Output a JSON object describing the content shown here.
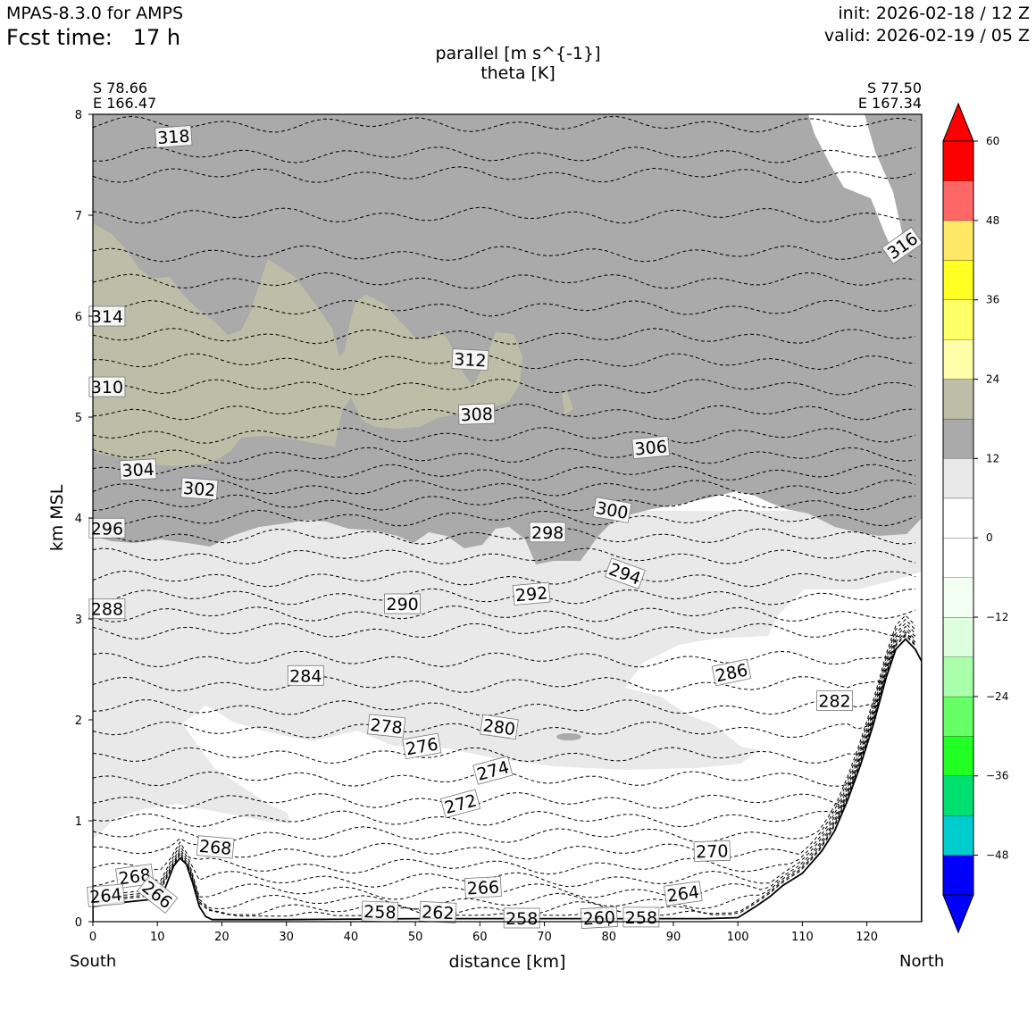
{
  "header": {
    "model": "MPAS-8.3.0 for AMPS",
    "fcst_label": "Fcst time:",
    "fcst_value": "17 h",
    "init": "init: 2026-02-18 / 12 Z",
    "valid": "valid: 2026-02-19 / 05 Z"
  },
  "section": {
    "left_lat": "S 78.66",
    "left_lon": "E 166.47",
    "right_lat": "S 77.50",
    "right_lon": "E 167.34",
    "south": "South",
    "north": "North"
  },
  "chart_data": {
    "type": "cross-section",
    "title_line1": "parallel [m s^{-1}]",
    "title_line2": "theta [K]",
    "xlabel": "distance [km]",
    "ylabel": "km MSL",
    "xlim": [
      0,
      128.5
    ],
    "ylim": [
      0,
      8
    ],
    "x_ticks": [
      "0",
      "10",
      "20",
      "30",
      "40",
      "50",
      "60",
      "70",
      "80",
      "90",
      "100",
      "110",
      "120"
    ],
    "y_ticks": [
      "0",
      "1",
      "2",
      "3",
      "4",
      "5",
      "6",
      "7",
      "8"
    ],
    "colorbar": {
      "levels": [
        -54,
        -48,
        -42,
        -36,
        -30,
        -24,
        -18,
        -12,
        -6,
        0,
        6,
        12,
        18,
        24,
        30,
        36,
        42,
        48,
        54,
        60
      ],
      "colors": [
        "#0000ff",
        "#00cdcd",
        "#00e070",
        "#22ff22",
        "#66ff66",
        "#aaffaa",
        "#ddffdd",
        "#f4fff4",
        "#ffffff",
        "#ffffff",
        "#e9e9e9",
        "#aaaaaa",
        "#bebea8",
        "#ffffaa",
        "#ffff66",
        "#ffff22",
        "#ffe866",
        "#ff6666",
        "#ff0000"
      ],
      "under_color": "#0000ff",
      "over_color": "#ff0000",
      "tick_labels": [
        "60",
        "48",
        "36",
        "24",
        "12",
        "0",
        "−12",
        "−24",
        "−36",
        "−48"
      ]
    },
    "theta_labels": [
      {
        "text": "318",
        "x": 12.5,
        "z": 7.78,
        "rot": -4
      },
      {
        "text": "316",
        "x": 125.5,
        "z": 6.7,
        "rot": -35
      },
      {
        "text": "314",
        "x": 2.2,
        "z": 6.0,
        "rot": 0
      },
      {
        "text": "312",
        "x": 58.5,
        "z": 5.57,
        "rot": 3
      },
      {
        "text": "310",
        "x": 2.2,
        "z": 5.3,
        "rot": 0
      },
      {
        "text": "308",
        "x": 59.5,
        "z": 5.03,
        "rot": -2
      },
      {
        "text": "306",
        "x": 86.5,
        "z": 4.7,
        "rot": -5
      },
      {
        "text": "304",
        "x": 7.0,
        "z": 4.48,
        "rot": -3
      },
      {
        "text": "302",
        "x": 16.5,
        "z": 4.29,
        "rot": 4
      },
      {
        "text": "300",
        "x": 80.5,
        "z": 4.08,
        "rot": 10
      },
      {
        "text": "298",
        "x": 70.5,
        "z": 3.86,
        "rot": 0
      },
      {
        "text": "296",
        "x": 2.2,
        "z": 3.9,
        "rot": 0
      },
      {
        "text": "294",
        "x": 82.5,
        "z": 3.45,
        "rot": 20
      },
      {
        "text": "292",
        "x": 68.0,
        "z": 3.25,
        "rot": -5
      },
      {
        "text": "290",
        "x": 48.0,
        "z": 3.15,
        "rot": 0
      },
      {
        "text": "288",
        "x": 2.2,
        "z": 3.1,
        "rot": 0
      },
      {
        "text": "286",
        "x": 99.0,
        "z": 2.47,
        "rot": -12
      },
      {
        "text": "284",
        "x": 33.0,
        "z": 2.44,
        "rot": 0
      },
      {
        "text": "282",
        "x": 115.0,
        "z": 2.19,
        "rot": 0
      },
      {
        "text": "280",
        "x": 63.0,
        "z": 1.93,
        "rot": 8
      },
      {
        "text": "278",
        "x": 45.5,
        "z": 1.94,
        "rot": 6
      },
      {
        "text": "276",
        "x": 51.0,
        "z": 1.74,
        "rot": -10
      },
      {
        "text": "274",
        "x": 62.0,
        "z": 1.5,
        "rot": -15
      },
      {
        "text": "272",
        "x": 57.0,
        "z": 1.17,
        "rot": -15
      },
      {
        "text": "270",
        "x": 96.0,
        "z": 0.7,
        "rot": -2
      },
      {
        "text": "268",
        "x": 19.0,
        "z": 0.74,
        "rot": 5
      },
      {
        "text": "268",
        "x": 6.5,
        "z": 0.45,
        "rot": -8
      },
      {
        "text": "266",
        "x": 60.5,
        "z": 0.34,
        "rot": -3
      },
      {
        "text": "266",
        "x": 10.0,
        "z": 0.27,
        "rot": 38
      },
      {
        "text": "264",
        "x": 2.0,
        "z": 0.26,
        "rot": -5
      },
      {
        "text": "264",
        "x": 91.5,
        "z": 0.28,
        "rot": -8
      },
      {
        "text": "262",
        "x": 53.5,
        "z": 0.095,
        "rot": 3
      },
      {
        "text": "260",
        "x": 78.5,
        "z": 0.04,
        "rot": -3
      },
      {
        "text": "258",
        "x": 44.5,
        "z": 0.1,
        "rot": 2
      },
      {
        "text": "258",
        "x": 66.5,
        "z": 0.035,
        "rot": 0
      },
      {
        "text": "258",
        "x": 85.0,
        "z": 0.045,
        "rot": 0
      }
    ],
    "terrain": {
      "x": [
        0,
        3,
        6,
        9,
        11,
        12.5,
        13.5,
        14.5,
        15.5,
        16.5,
        17.5,
        18.5,
        20,
        25,
        30,
        40,
        50,
        60,
        70,
        80,
        90,
        95,
        100,
        101,
        103,
        105,
        107,
        110,
        113,
        115,
        117,
        119,
        121,
        123,
        124.5,
        126,
        127.5,
        128.5
      ],
      "z": [
        0.15,
        0.18,
        0.2,
        0.22,
        0.3,
        0.55,
        0.63,
        0.57,
        0.38,
        0.15,
        0.05,
        0.02,
        0.02,
        0.02,
        0.02,
        0.025,
        0.03,
        0.03,
        0.03,
        0.03,
        0.03,
        0.03,
        0.04,
        0.08,
        0.16,
        0.25,
        0.36,
        0.48,
        0.7,
        0.9,
        1.2,
        1.55,
        1.95,
        2.42,
        2.7,
        2.8,
        2.7,
        2.58
      ]
    }
  }
}
